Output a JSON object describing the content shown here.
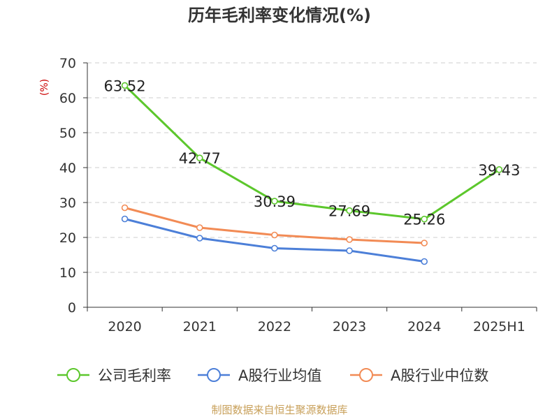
{
  "chart_data": {
    "type": "line",
    "title": "历年毛利率变化情况(%)",
    "ylabel": "(%)",
    "xlabel": "",
    "categories": [
      "2020",
      "2021",
      "2022",
      "2023",
      "2024",
      "2025H1"
    ],
    "ylim": [
      0,
      70
    ],
    "yticks": [
      0,
      10,
      20,
      30,
      40,
      50,
      60,
      70
    ],
    "grid": true,
    "legend_position": "bottom",
    "series": [
      {
        "name": "公司毛利率",
        "color": "#5cc72c",
        "values": [
          63.52,
          42.77,
          30.39,
          27.69,
          25.26,
          39.43
        ],
        "labels": true
      },
      {
        "name": "A股行业均值",
        "color": "#4c7fd8",
        "values": [
          25.3,
          19.8,
          16.9,
          16.2,
          13.1,
          null
        ],
        "labels": false
      },
      {
        "name": "A股行业中位数",
        "color": "#f28b55",
        "values": [
          28.5,
          22.8,
          20.7,
          19.4,
          18.4,
          null
        ],
        "labels": false
      }
    ]
  },
  "footer": {
    "source": "制图数据来自恒生聚源数据库"
  }
}
